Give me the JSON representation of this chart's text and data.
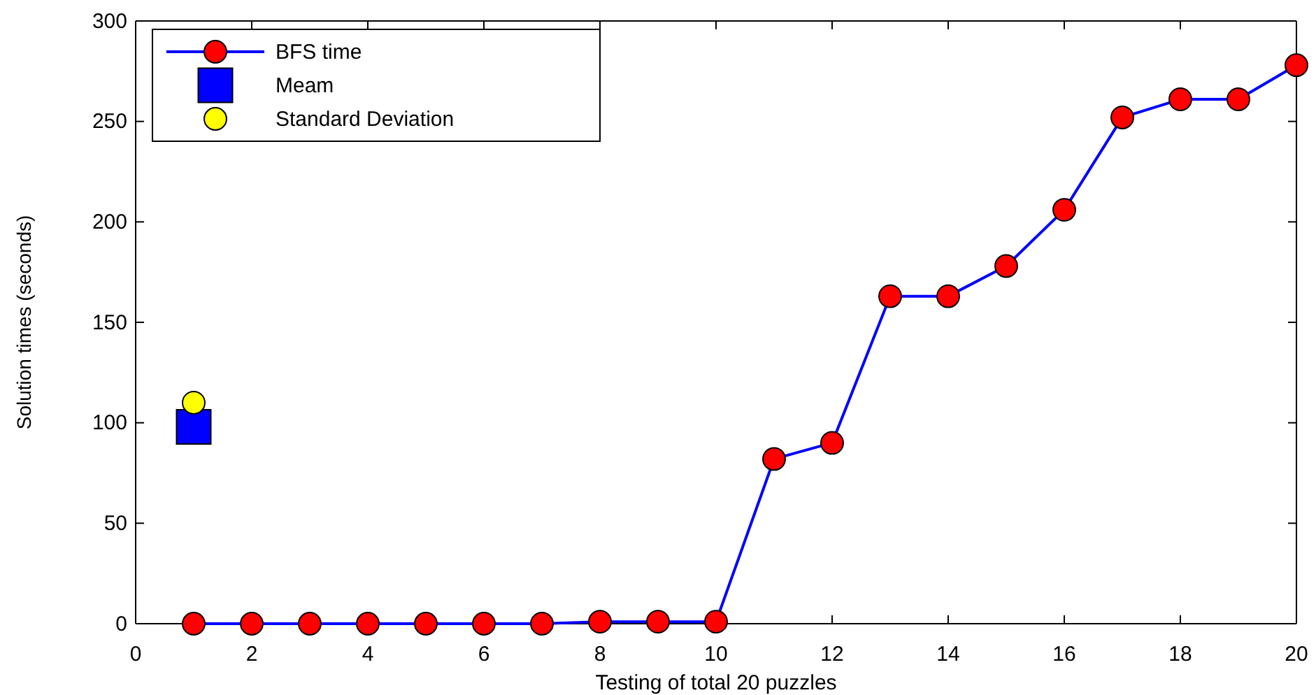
{
  "chart_data": {
    "type": "line",
    "xlabel": "Testing of total 20 puzzles",
    "ylabel": "Solution times (seconds)",
    "xlim": [
      0,
      20
    ],
    "ylim": [
      0,
      300
    ],
    "xticks": [
      0,
      2,
      4,
      6,
      8,
      10,
      12,
      14,
      16,
      18,
      20
    ],
    "yticks": [
      0,
      50,
      100,
      150,
      200,
      250,
      300
    ],
    "grid": false,
    "legend": "top left",
    "marker": "circle",
    "line_style": "solid",
    "series": [
      {
        "name": "BFS time",
        "color": "#0000ff",
        "colors": [
          "#ff0000",
          "#ff0000",
          "#ff0000",
          "#ff0000",
          "#ff0000",
          "#ff0000",
          "#ff0000",
          "#ff0000",
          "#ff0000",
          "#ff0000",
          "#ff0000",
          "#ff0000",
          "#ff0000",
          "#ff0000",
          "#ff0000",
          "#ff0000",
          "#ff0000",
          "#ff0000",
          "#ff0000",
          "#ff0000"
        ],
        "x": [
          1,
          2,
          3,
          4,
          5,
          6,
          7,
          8,
          9,
          10,
          11,
          12,
          13,
          14,
          15,
          16,
          17,
          18,
          19,
          20
        ],
        "values": [
          0,
          0,
          0,
          0,
          0,
          0,
          0,
          1,
          1,
          1,
          82,
          90,
          163,
          163,
          178,
          206,
          252,
          261,
          261,
          278
        ]
      },
      {
        "name": "Meam",
        "type": "scatter",
        "marker": "square",
        "color": "#0000ff",
        "x": [
          1
        ],
        "values": [
          98
        ]
      },
      {
        "name": "Standard Deviation",
        "type": "scatter",
        "marker": "circle",
        "color": "#ffff00",
        "x": [
          1
        ],
        "values": [
          110
        ]
      }
    ]
  }
}
